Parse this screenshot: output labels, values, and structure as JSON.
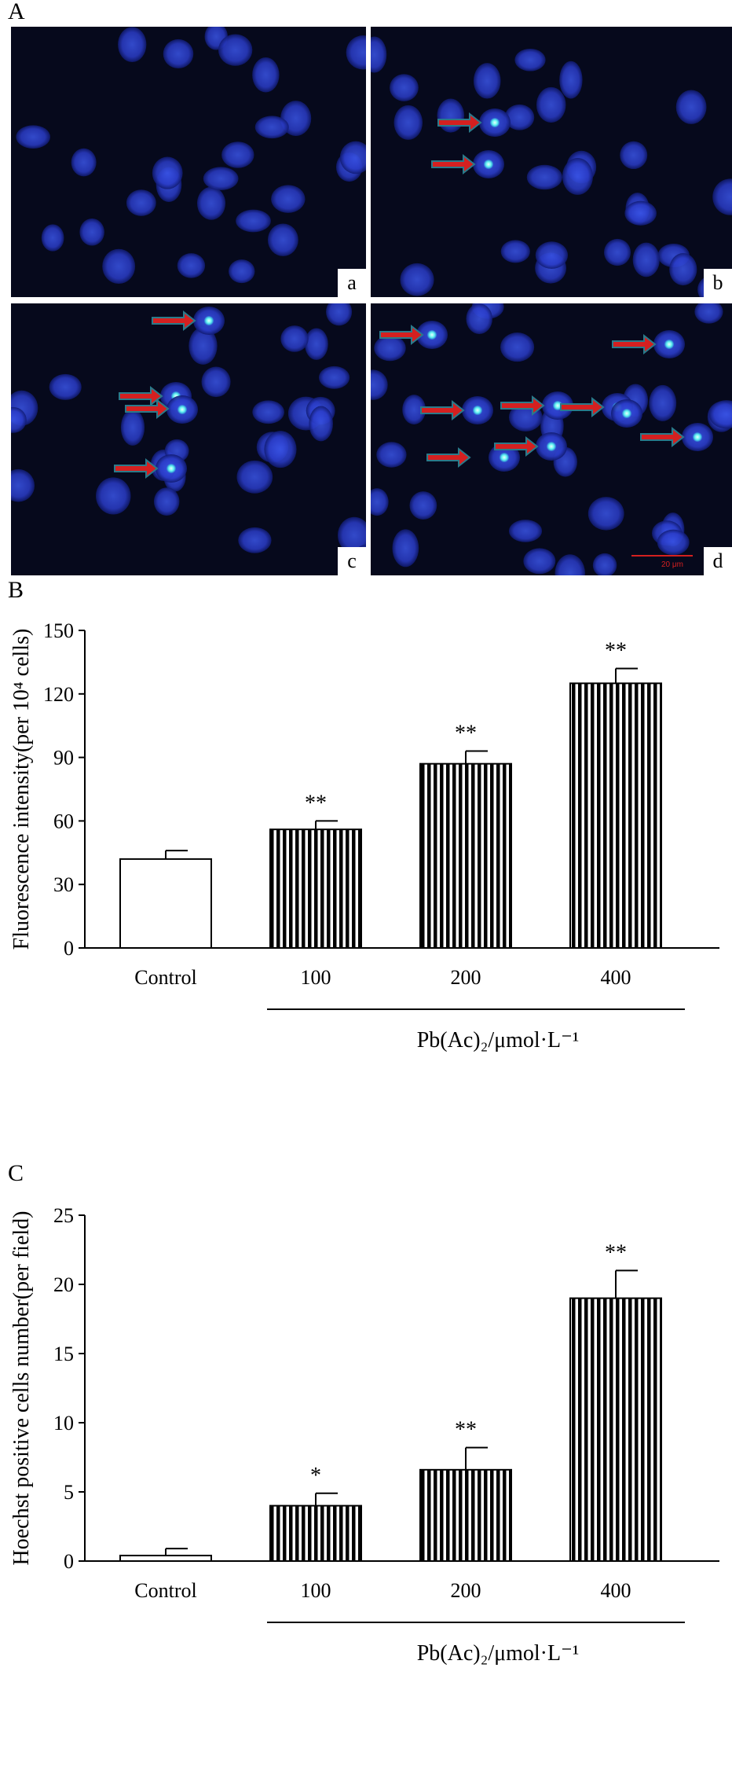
{
  "panels": {
    "A": "A",
    "B": "B",
    "C": "C"
  },
  "micrographs": [
    {
      "label": "a",
      "arrows": 0
    },
    {
      "label": "b",
      "arrows": 2
    },
    {
      "label": "c",
      "arrows": 4
    },
    {
      "label": "d",
      "arrows": 8
    }
  ],
  "scale_text": "20 μm",
  "colors": {
    "background": "#06091c",
    "nucleus": "#2a3cc8",
    "bright_nucleus": "#5ff3f0",
    "arrow": "#d42020",
    "arrow_outline": "#2a7a8a",
    "bar_hatch": "#000000"
  },
  "chart_data": [
    {
      "type": "bar",
      "categories": [
        "Control",
        "100",
        "200",
        "400"
      ],
      "values": [
        42,
        56,
        87,
        125
      ],
      "errors": [
        4,
        4,
        6,
        7
      ],
      "significance": [
        "",
        "**",
        "**",
        "**"
      ],
      "ylabel": "Fluorescence intensity(per 10⁴ cells)",
      "xgroup_label": "Pb(Ac)₂/μmol·L⁻¹",
      "yticks": [
        "0",
        "30",
        "60",
        "90",
        "120",
        "150"
      ],
      "ylim": [
        0,
        150
      ]
    },
    {
      "type": "bar",
      "categories": [
        "Control",
        "100",
        "200",
        "400"
      ],
      "values": [
        0.4,
        4.0,
        6.6,
        19.0
      ],
      "errors": [
        0.5,
        0.9,
        1.6,
        2.0
      ],
      "significance": [
        "",
        "*",
        "**",
        "**"
      ],
      "ylabel": "Hoechst positive cells number(per field)",
      "xgroup_label": "Pb(Ac)₂/μmol·L⁻¹",
      "yticks": [
        "0",
        "5",
        "10",
        "15",
        "20",
        "25"
      ],
      "ylim": [
        0,
        25
      ]
    }
  ]
}
